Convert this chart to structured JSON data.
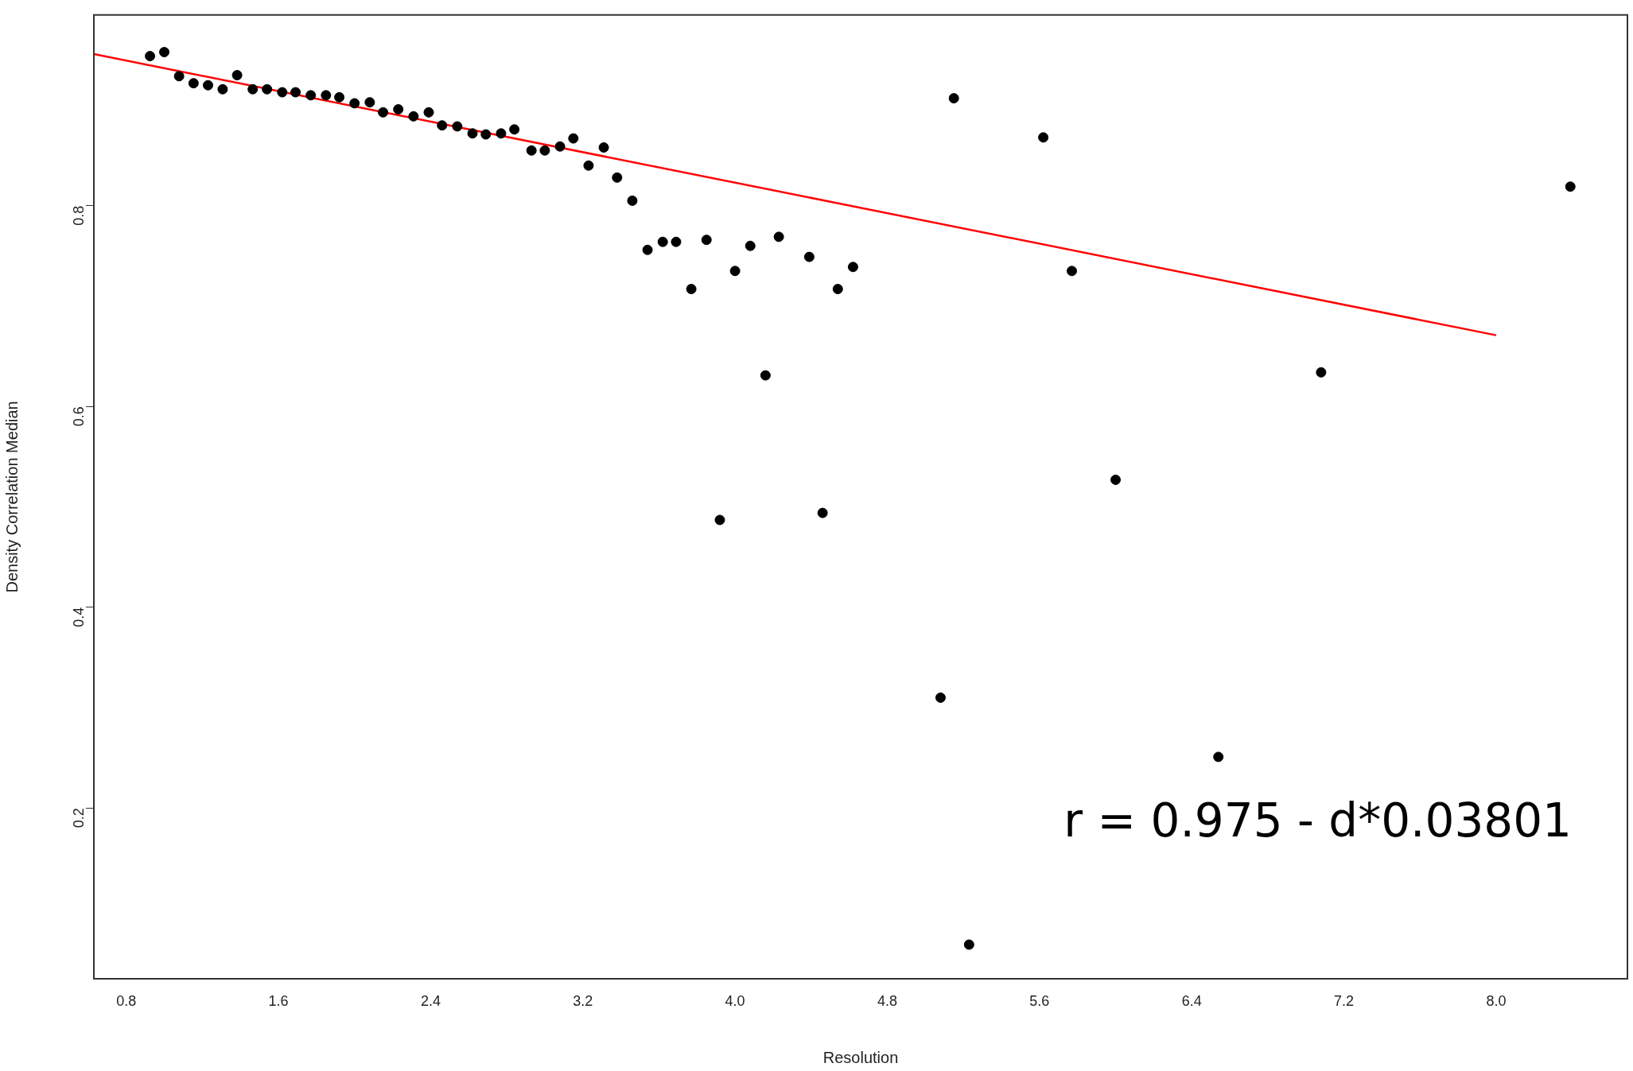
{
  "chart_data": {
    "type": "scatter",
    "xlabel": "Resolution",
    "ylabel": "Density Correlation Median",
    "xlim": [
      0.63,
      8.69
    ],
    "ylim": [
      0.03,
      0.99
    ],
    "xticks": [
      {
        "value": 0.8,
        "label": "0.8"
      },
      1.6,
      2.4,
      3.2,
      {
        "value": 4.0,
        "label": "4.0"
      },
      4.8,
      5.6,
      6.4,
      7.2,
      {
        "value": 8.0,
        "label": "8.0"
      }
    ],
    "yticks": [
      0.2,
      0.4,
      0.6,
      0.8
    ],
    "grid": false,
    "legend": false,
    "annotations": [
      "r = 0.975 - d*0.03801"
    ],
    "series": [
      {
        "marker": "circle",
        "color": "#000000",
        "x": [
          0.925,
          1.0,
          1.078,
          1.154,
          1.23,
          1.307,
          1.383,
          1.465,
          1.54,
          1.62,
          1.69,
          1.77,
          1.85,
          1.92,
          2.0,
          2.08,
          2.15,
          2.23,
          2.31,
          2.39,
          2.46,
          2.54,
          2.62,
          2.69,
          2.77,
          2.84,
          2.93,
          3.0,
          3.08,
          3.15,
          3.23,
          3.31,
          3.38,
          3.46,
          3.54,
          3.62,
          3.69,
          3.77,
          3.85,
          3.92,
          4.0,
          4.08,
          4.16,
          4.23,
          4.39,
          4.46,
          4.54,
          4.62,
          5.08,
          5.15,
          5.23,
          5.62,
          5.77,
          6.0,
          6.54,
          7.08,
          8.39
        ],
        "values": [
          0.949,
          0.953,
          0.929,
          0.922,
          0.92,
          0.916,
          0.93,
          0.916,
          0.916,
          0.913,
          0.913,
          0.91,
          0.91,
          0.908,
          0.902,
          0.903,
          0.893,
          0.896,
          0.889,
          0.893,
          0.88,
          0.879,
          0.872,
          0.871,
          0.872,
          0.876,
          0.855,
          0.855,
          0.859,
          0.867,
          0.84,
          0.858,
          0.828,
          0.805,
          0.756,
          0.764,
          0.764,
          0.717,
          0.766,
          0.487,
          0.735,
          0.76,
          0.631,
          0.769,
          0.749,
          0.494,
          0.717,
          0.739,
          0.31,
          0.907,
          0.064,
          0.868,
          0.735,
          0.527,
          0.251,
          0.634,
          0.819
        ]
      },
      {
        "type": "line",
        "color": "#ff0000",
        "x": [
          0.63,
          8.0
        ],
        "values": [
          0.951,
          0.671
        ]
      }
    ]
  }
}
